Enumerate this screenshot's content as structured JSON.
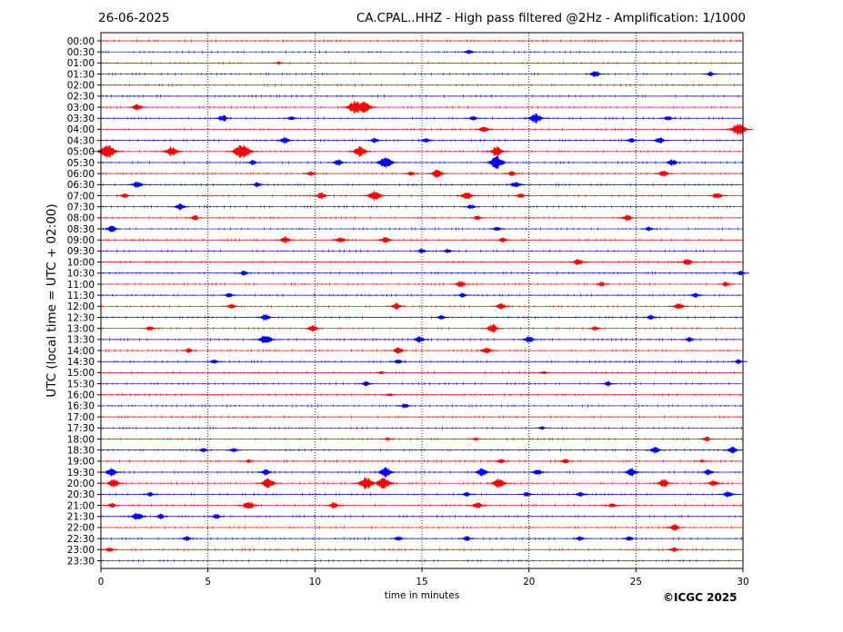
{
  "header": {
    "date": "26-06-2025",
    "title": "CA.CPAL..HHZ - High pass filtered @2Hz - Amplification: 1/1000"
  },
  "footer": {
    "copyright": "©ICGC 2025"
  },
  "colors": {
    "red": "#ff0000",
    "blue": "#0000ff",
    "grid": "#000000"
  },
  "chart_data": {
    "type": "line",
    "chart_kind": "helicorder seismogram",
    "xlabel": "time in minutes",
    "ylabel": "UTC (local time = UTC + 02:00)",
    "xlim": [
      0,
      30
    ],
    "xticks": [
      0,
      5,
      10,
      15,
      20,
      25,
      30
    ],
    "grid": "vertical dotted lines at x ticks",
    "row_colors": [
      "red",
      "blue"
    ],
    "rows": [
      {
        "label": "00:00",
        "events": []
      },
      {
        "label": "00:30",
        "events": [
          [
            17.2,
            3
          ]
        ]
      },
      {
        "label": "01:00",
        "events": [
          [
            8.3,
            2
          ]
        ]
      },
      {
        "label": "01:30",
        "events": [
          [
            23.1,
            4
          ],
          [
            28.5,
            3
          ]
        ]
      },
      {
        "label": "02:00",
        "events": []
      },
      {
        "label": "02:30",
        "events": []
      },
      {
        "label": "03:00",
        "events": [
          [
            1.7,
            4
          ],
          [
            11.9,
            8
          ],
          [
            12.3,
            7
          ]
        ]
      },
      {
        "label": "03:30",
        "events": [
          [
            5.7,
            4
          ],
          [
            8.9,
            3
          ],
          [
            17.4,
            3
          ],
          [
            20.3,
            6
          ],
          [
            26.5,
            3
          ]
        ]
      },
      {
        "label": "04:00",
        "events": [
          [
            17.9,
            4
          ],
          [
            29.8,
            7
          ]
        ]
      },
      {
        "label": "04:30",
        "events": [
          [
            8.6,
            4
          ],
          [
            12.8,
            3
          ],
          [
            15.2,
            3
          ],
          [
            24.8,
            3
          ],
          [
            26.1,
            4
          ]
        ]
      },
      {
        "label": "05:00",
        "events": [
          [
            0.3,
            8
          ],
          [
            3.3,
            6
          ],
          [
            6.6,
            9
          ],
          [
            12.1,
            6
          ],
          [
            18.5,
            6
          ]
        ]
      },
      {
        "label": "05:30",
        "events": [
          [
            7.1,
            3
          ],
          [
            11.1,
            4
          ],
          [
            13.3,
            7
          ],
          [
            18.5,
            7
          ],
          [
            26.7,
            4
          ]
        ]
      },
      {
        "label": "06:00",
        "events": [
          [
            9.8,
            3
          ],
          [
            14.5,
            3
          ],
          [
            15.7,
            5
          ],
          [
            19.2,
            3
          ],
          [
            26.3,
            4
          ]
        ]
      },
      {
        "label": "06:30",
        "events": [
          [
            1.7,
            4
          ],
          [
            7.3,
            3
          ],
          [
            19.4,
            4
          ]
        ]
      },
      {
        "label": "07:00",
        "events": [
          [
            1.1,
            3
          ],
          [
            10.3,
            4
          ],
          [
            12.8,
            6
          ],
          [
            17.1,
            5
          ],
          [
            19.6,
            3
          ],
          [
            28.8,
            4
          ]
        ]
      },
      {
        "label": "07:30",
        "events": [
          [
            3.7,
            4
          ],
          [
            17.3,
            3
          ]
        ]
      },
      {
        "label": "08:00",
        "events": [
          [
            4.4,
            3
          ],
          [
            17.6,
            3
          ],
          [
            24.6,
            4
          ]
        ]
      },
      {
        "label": "08:30",
        "events": [
          [
            0.5,
            4
          ],
          [
            18.5,
            3
          ],
          [
            25.6,
            3
          ]
        ]
      },
      {
        "label": "09:00",
        "events": [
          [
            8.6,
            4
          ],
          [
            11.2,
            4
          ],
          [
            13.3,
            4
          ],
          [
            18.8,
            3
          ]
        ]
      },
      {
        "label": "09:30",
        "events": [
          [
            15.0,
            3
          ],
          [
            16.2,
            3
          ]
        ]
      },
      {
        "label": "10:00",
        "events": [
          [
            22.3,
            4
          ],
          [
            27.4,
            4
          ]
        ]
      },
      {
        "label": "10:30",
        "events": [
          [
            6.7,
            3
          ],
          [
            29.9,
            3
          ]
        ]
      },
      {
        "label": "11:00",
        "events": [
          [
            16.8,
            4
          ],
          [
            23.4,
            3
          ],
          [
            29.2,
            3
          ]
        ]
      },
      {
        "label": "11:30",
        "events": [
          [
            6.0,
            3
          ],
          [
            16.9,
            3
          ],
          [
            27.8,
            3
          ]
        ]
      },
      {
        "label": "12:00",
        "events": [
          [
            6.1,
            3
          ],
          [
            13.8,
            4
          ],
          [
            18.7,
            4
          ],
          [
            27.0,
            4
          ]
        ]
      },
      {
        "label": "12:30",
        "events": [
          [
            7.7,
            4
          ],
          [
            15.9,
            3
          ],
          [
            25.7,
            3
          ]
        ]
      },
      {
        "label": "13:00",
        "events": [
          [
            2.3,
            3
          ],
          [
            9.9,
            4
          ],
          [
            18.3,
            5
          ],
          [
            23.1,
            3
          ]
        ]
      },
      {
        "label": "13:30",
        "events": [
          [
            7.7,
            6
          ],
          [
            14.9,
            4
          ],
          [
            20.0,
            4
          ],
          [
            27.5,
            3
          ]
        ]
      },
      {
        "label": "14:00",
        "events": [
          [
            4.1,
            3
          ],
          [
            13.9,
            4
          ],
          [
            18.0,
            4
          ]
        ]
      },
      {
        "label": "14:30",
        "events": [
          [
            5.3,
            3
          ],
          [
            13.9,
            3
          ],
          [
            29.8,
            3
          ]
        ]
      },
      {
        "label": "15:00",
        "events": [
          [
            13.1,
            2
          ],
          [
            20.7,
            2
          ]
        ]
      },
      {
        "label": "15:30",
        "events": [
          [
            12.4,
            3
          ],
          [
            23.7,
            3
          ]
        ]
      },
      {
        "label": "16:00",
        "events": [
          [
            13.5,
            2
          ]
        ]
      },
      {
        "label": "16:30",
        "events": [
          [
            14.2,
            3
          ]
        ]
      },
      {
        "label": "17:00",
        "events": []
      },
      {
        "label": "17:30",
        "events": [
          [
            20.6,
            2
          ]
        ]
      },
      {
        "label": "18:00",
        "events": [
          [
            13.4,
            2
          ],
          [
            17.5,
            2
          ],
          [
            28.3,
            3
          ]
        ]
      },
      {
        "label": "18:30",
        "events": [
          [
            4.8,
            3
          ],
          [
            6.2,
            3
          ],
          [
            25.9,
            4
          ],
          [
            29.5,
            4
          ]
        ]
      },
      {
        "label": "19:00",
        "events": [
          [
            6.9,
            2
          ],
          [
            18.7,
            3
          ],
          [
            21.7,
            3
          ],
          [
            28.1,
            2
          ]
        ]
      },
      {
        "label": "19:30",
        "events": [
          [
            0.5,
            5
          ],
          [
            7.7,
            4
          ],
          [
            13.3,
            6
          ],
          [
            17.8,
            5
          ],
          [
            20.4,
            4
          ],
          [
            24.8,
            5
          ],
          [
            28.4,
            4
          ]
        ]
      },
      {
        "label": "20:00",
        "events": [
          [
            0.6,
            5
          ],
          [
            7.8,
            6
          ],
          [
            12.4,
            7
          ],
          [
            13.2,
            7
          ],
          [
            18.6,
            6
          ],
          [
            26.3,
            5
          ],
          [
            28.6,
            4
          ]
        ]
      },
      {
        "label": "20:30",
        "events": [
          [
            2.3,
            3
          ],
          [
            17.1,
            3
          ],
          [
            19.9,
            3
          ],
          [
            22.4,
            3
          ],
          [
            29.3,
            4
          ]
        ]
      },
      {
        "label": "21:00",
        "events": [
          [
            0.5,
            3
          ],
          [
            6.9,
            5
          ],
          [
            10.9,
            4
          ],
          [
            17.6,
            4
          ],
          [
            23.9,
            3
          ]
        ]
      },
      {
        "label": "21:30",
        "events": [
          [
            1.7,
            5
          ],
          [
            2.8,
            3
          ],
          [
            5.4,
            3
          ]
        ]
      },
      {
        "label": "22:00",
        "events": [
          [
            26.8,
            4
          ]
        ]
      },
      {
        "label": "22:30",
        "events": [
          [
            4.0,
            3
          ],
          [
            13.9,
            3
          ],
          [
            17.1,
            3
          ],
          [
            22.4,
            3
          ],
          [
            24.7,
            3
          ]
        ]
      },
      {
        "label": "23:00",
        "events": [
          [
            0.4,
            3
          ],
          [
            26.8,
            3
          ]
        ]
      },
      {
        "label": "23:30",
        "events": []
      }
    ]
  }
}
